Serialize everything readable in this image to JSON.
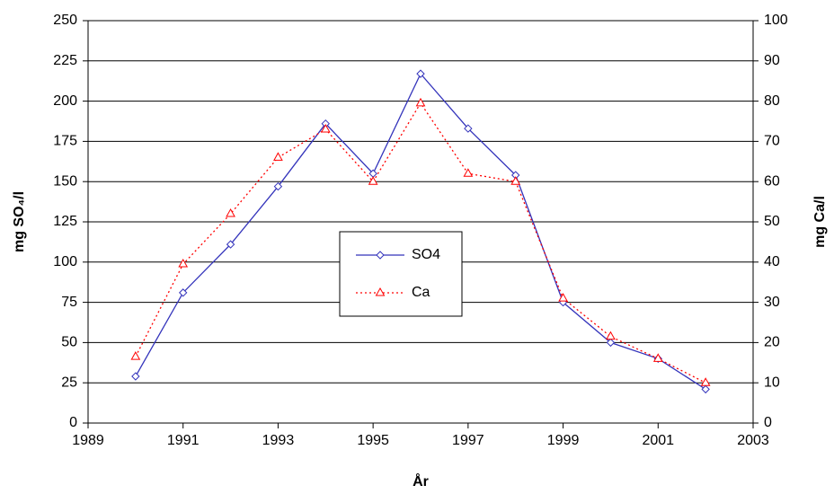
{
  "chart_data": {
    "type": "line",
    "x_label": "År",
    "y_label": "mg SO₄/l",
    "y2_label": "mg Ca/l",
    "x": [
      1990,
      1991,
      1992,
      1993,
      1994,
      1995,
      1996,
      1997,
      1998,
      1999,
      2000,
      2001,
      2002
    ],
    "series": [
      {
        "name": "SO4",
        "color": "#3333bb",
        "dash": "solid",
        "marker": "diamond",
        "values": [
          29,
          81,
          111,
          147,
          186,
          155,
          217,
          183,
          154,
          75,
          50,
          40,
          21
        ]
      },
      {
        "name": "Ca",
        "color": "#ff0000",
        "dash": "dotted",
        "marker": "triangle",
        "axis": "y2",
        "values": [
          16.5,
          39.5,
          52,
          66,
          73,
          60,
          79.5,
          62,
          60,
          31,
          21.5,
          16,
          10
        ]
      }
    ],
    "xlim": [
      1989,
      2003
    ],
    "xticks": [
      1989,
      1991,
      1993,
      1995,
      1997,
      1999,
      2001,
      2003
    ],
    "ylim": [
      0,
      250
    ],
    "yticks": [
      0,
      25,
      50,
      75,
      100,
      125,
      150,
      175,
      200,
      225,
      250
    ],
    "y2lim": [
      0,
      100
    ],
    "y2ticks": [
      0,
      10,
      20,
      30,
      40,
      50,
      60,
      70,
      80,
      90,
      100
    ],
    "grid": true,
    "legend": "center"
  }
}
